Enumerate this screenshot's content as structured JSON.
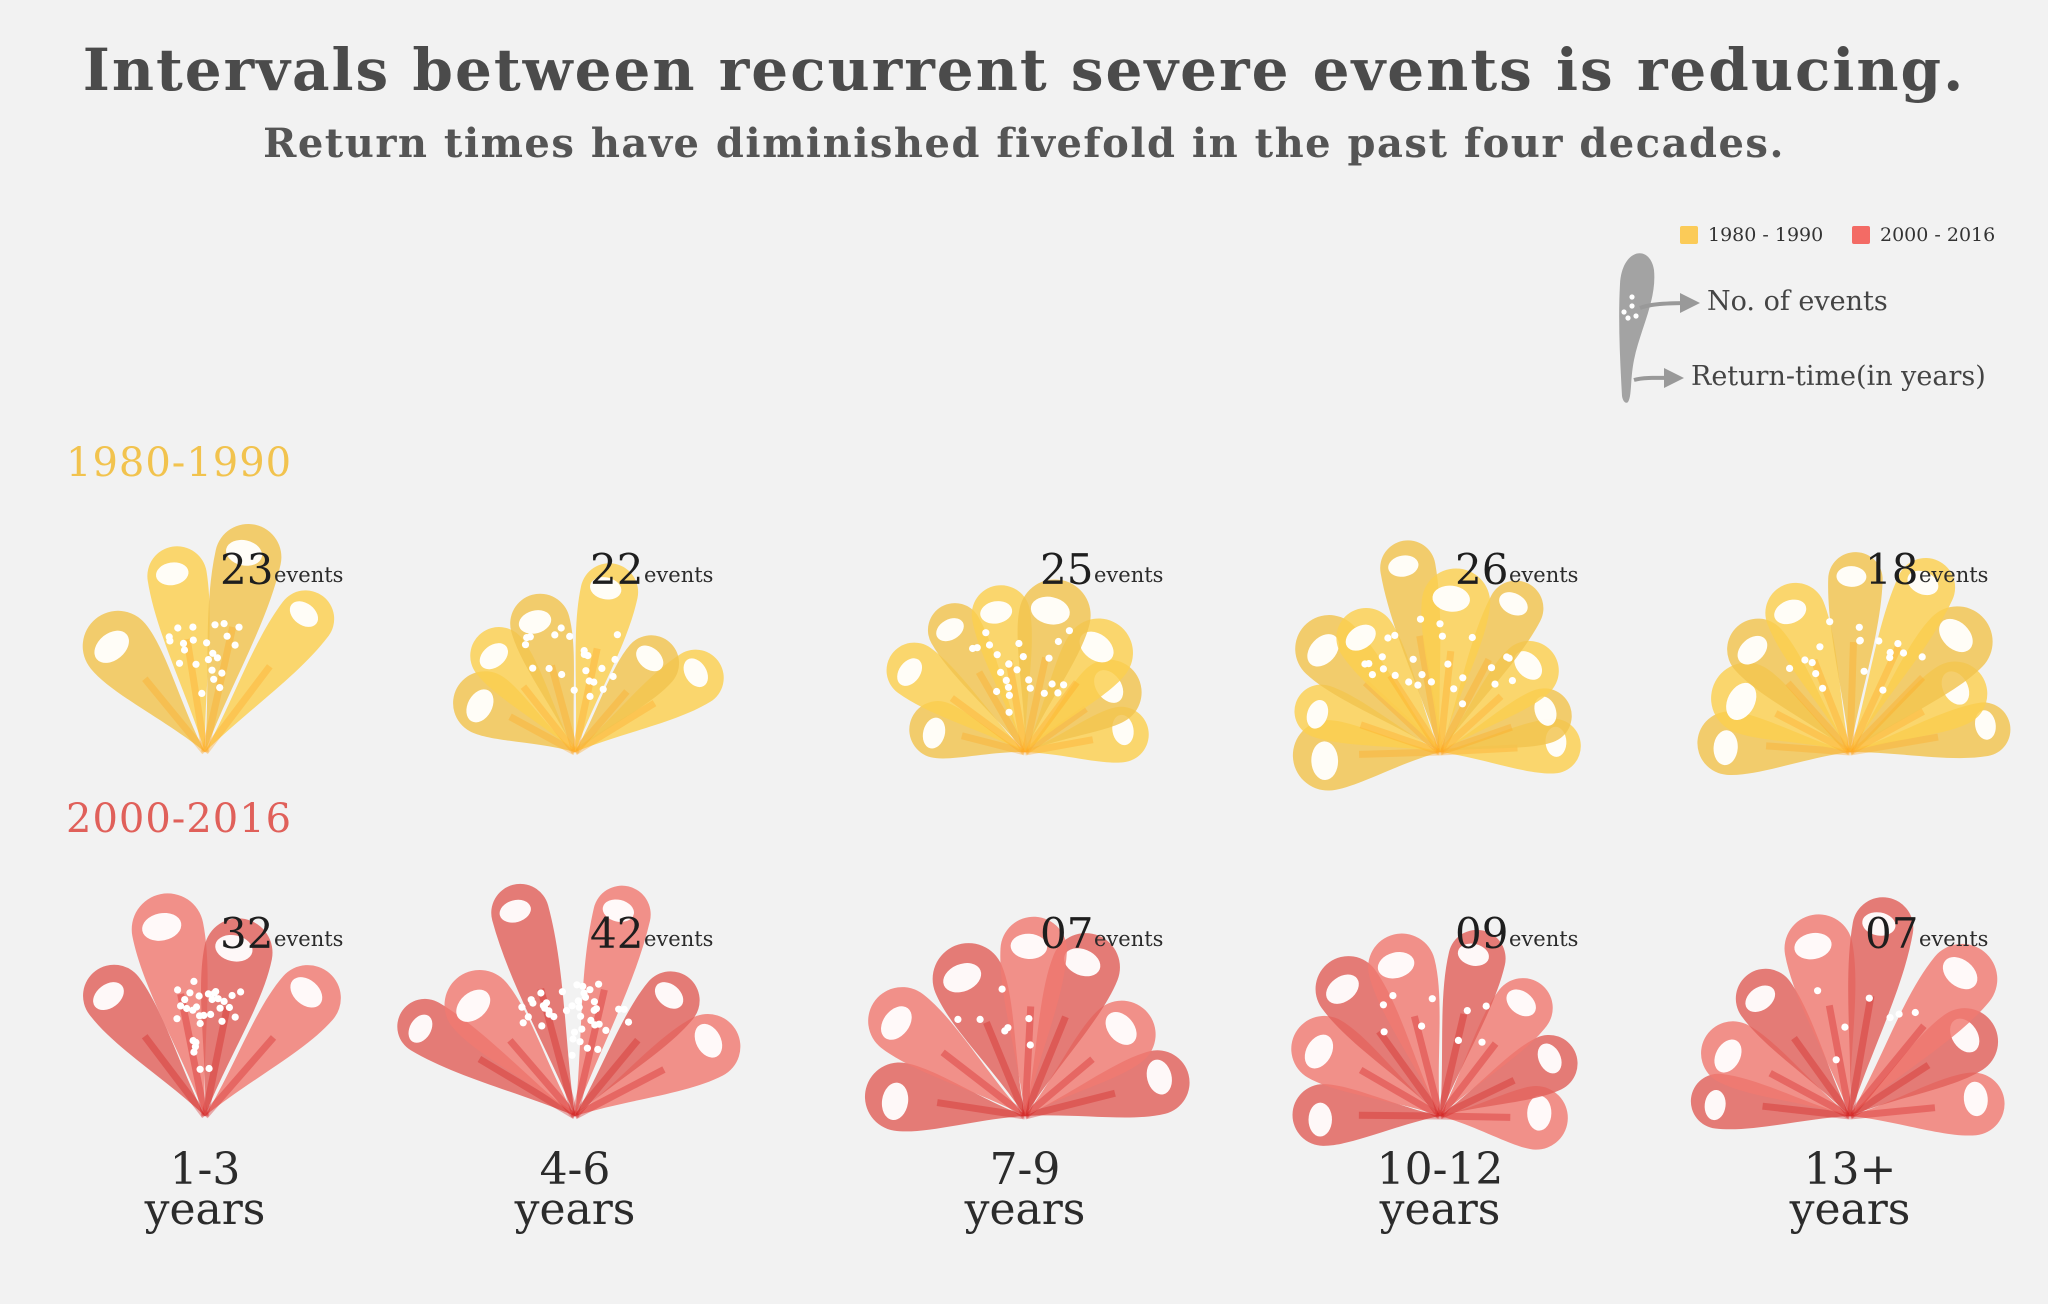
{
  "chart_data": {
    "type": "pictorial",
    "title": "Intervals between recurrent severe events is reducing.",
    "subtitle": "Return times have diminished fivefold in the past four decades.",
    "categories": [
      "1-3 years",
      "4-6 years",
      "7-9 years",
      "10-12 years",
      "13+ years"
    ],
    "category_labels": [
      {
        "line1": "1-3",
        "line2": "years"
      },
      {
        "line1": "4-6",
        "line2": "years"
      },
      {
        "line1": "7-9",
        "line2": "years"
      },
      {
        "line1": "10-12",
        "line2": "years"
      },
      {
        "line1": "13+",
        "line2": "years"
      }
    ],
    "series": [
      {
        "name": "1980-1990",
        "legend": "1980 - 1990",
        "color": "#f7c02c",
        "values": [
          23,
          22,
          25,
          26,
          18
        ],
        "value_labels": [
          "23",
          "22",
          "25",
          "26",
          "18"
        ]
      },
      {
        "name": "2000-2016",
        "legend": "2000 - 2016",
        "color": "#e8403c",
        "values": [
          32,
          42,
          7,
          9,
          7
        ],
        "value_labels": [
          "32",
          "42",
          "07",
          "09",
          "07"
        ]
      }
    ],
    "value_suffix": "events",
    "period_colors": {
      "1980-1990": "#f2c34e",
      "2000-2016": "#e0605a"
    },
    "key": {
      "events_label": "No. of events",
      "return_label": "Return-time(in years)",
      "icon": "coral-stalk-icon"
    },
    "legend_position": "top-right"
  }
}
